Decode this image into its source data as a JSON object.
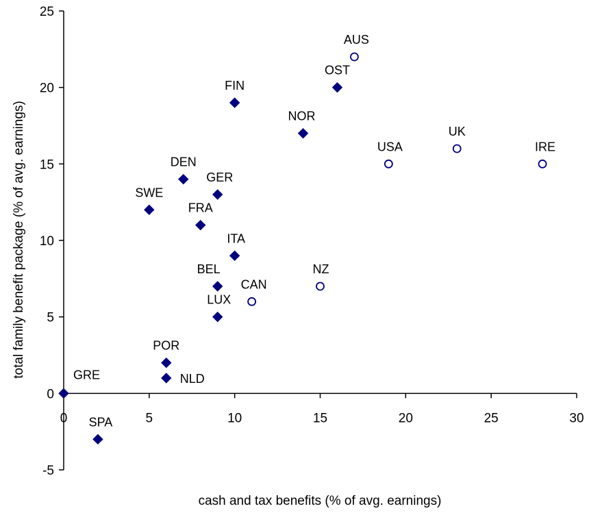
{
  "chart_data": {
    "type": "scatter",
    "title": "",
    "xlabel": "cash and tax benefits (% of avg. earnings)",
    "ylabel": "total family benefit package (% of avg. earnings)",
    "xlim": [
      0,
      30
    ],
    "ylim": [
      -5,
      25
    ],
    "x_ticks": [
      0,
      5,
      10,
      15,
      20,
      25,
      30
    ],
    "y_ticks": [
      -5,
      0,
      5,
      10,
      15,
      20,
      25
    ],
    "grid": false,
    "legend": "none",
    "colors": {
      "marker": "#00007f",
      "axis": "#000000",
      "open_fill": "#ffffff"
    },
    "series": [
      {
        "marker": "filled-diamond",
        "points": [
          {
            "label": "GRE",
            "x": 0,
            "y": 0
          },
          {
            "label": "SPA",
            "x": 2,
            "y": -3
          },
          {
            "label": "SWE",
            "x": 5,
            "y": 12
          },
          {
            "label": "POR",
            "x": 6,
            "y": 2
          },
          {
            "label": "NLD",
            "x": 6,
            "y": 1
          },
          {
            "label": "DEN",
            "x": 7,
            "y": 14
          },
          {
            "label": "FRA",
            "x": 8,
            "y": 11
          },
          {
            "label": "GER",
            "x": 9,
            "y": 13
          },
          {
            "label": "BEL",
            "x": 9,
            "y": 7
          },
          {
            "label": "LUX",
            "x": 9,
            "y": 5
          },
          {
            "label": "FIN",
            "x": 10,
            "y": 19
          },
          {
            "label": "ITA",
            "x": 10,
            "y": 9
          },
          {
            "label": "NOR",
            "x": 14,
            "y": 17
          },
          {
            "label": "OST",
            "x": 16,
            "y": 20
          }
        ]
      },
      {
        "marker": "open-circle",
        "points": [
          {
            "label": "CAN",
            "x": 11,
            "y": 6
          },
          {
            "label": "NZ",
            "x": 15,
            "y": 7
          },
          {
            "label": "AUS",
            "x": 17,
            "y": 22
          },
          {
            "label": "USA",
            "x": 19,
            "y": 15
          },
          {
            "label": "UK",
            "x": 23,
            "y": 16
          },
          {
            "label": "IRE",
            "x": 28,
            "y": 15
          }
        ]
      }
    ]
  }
}
